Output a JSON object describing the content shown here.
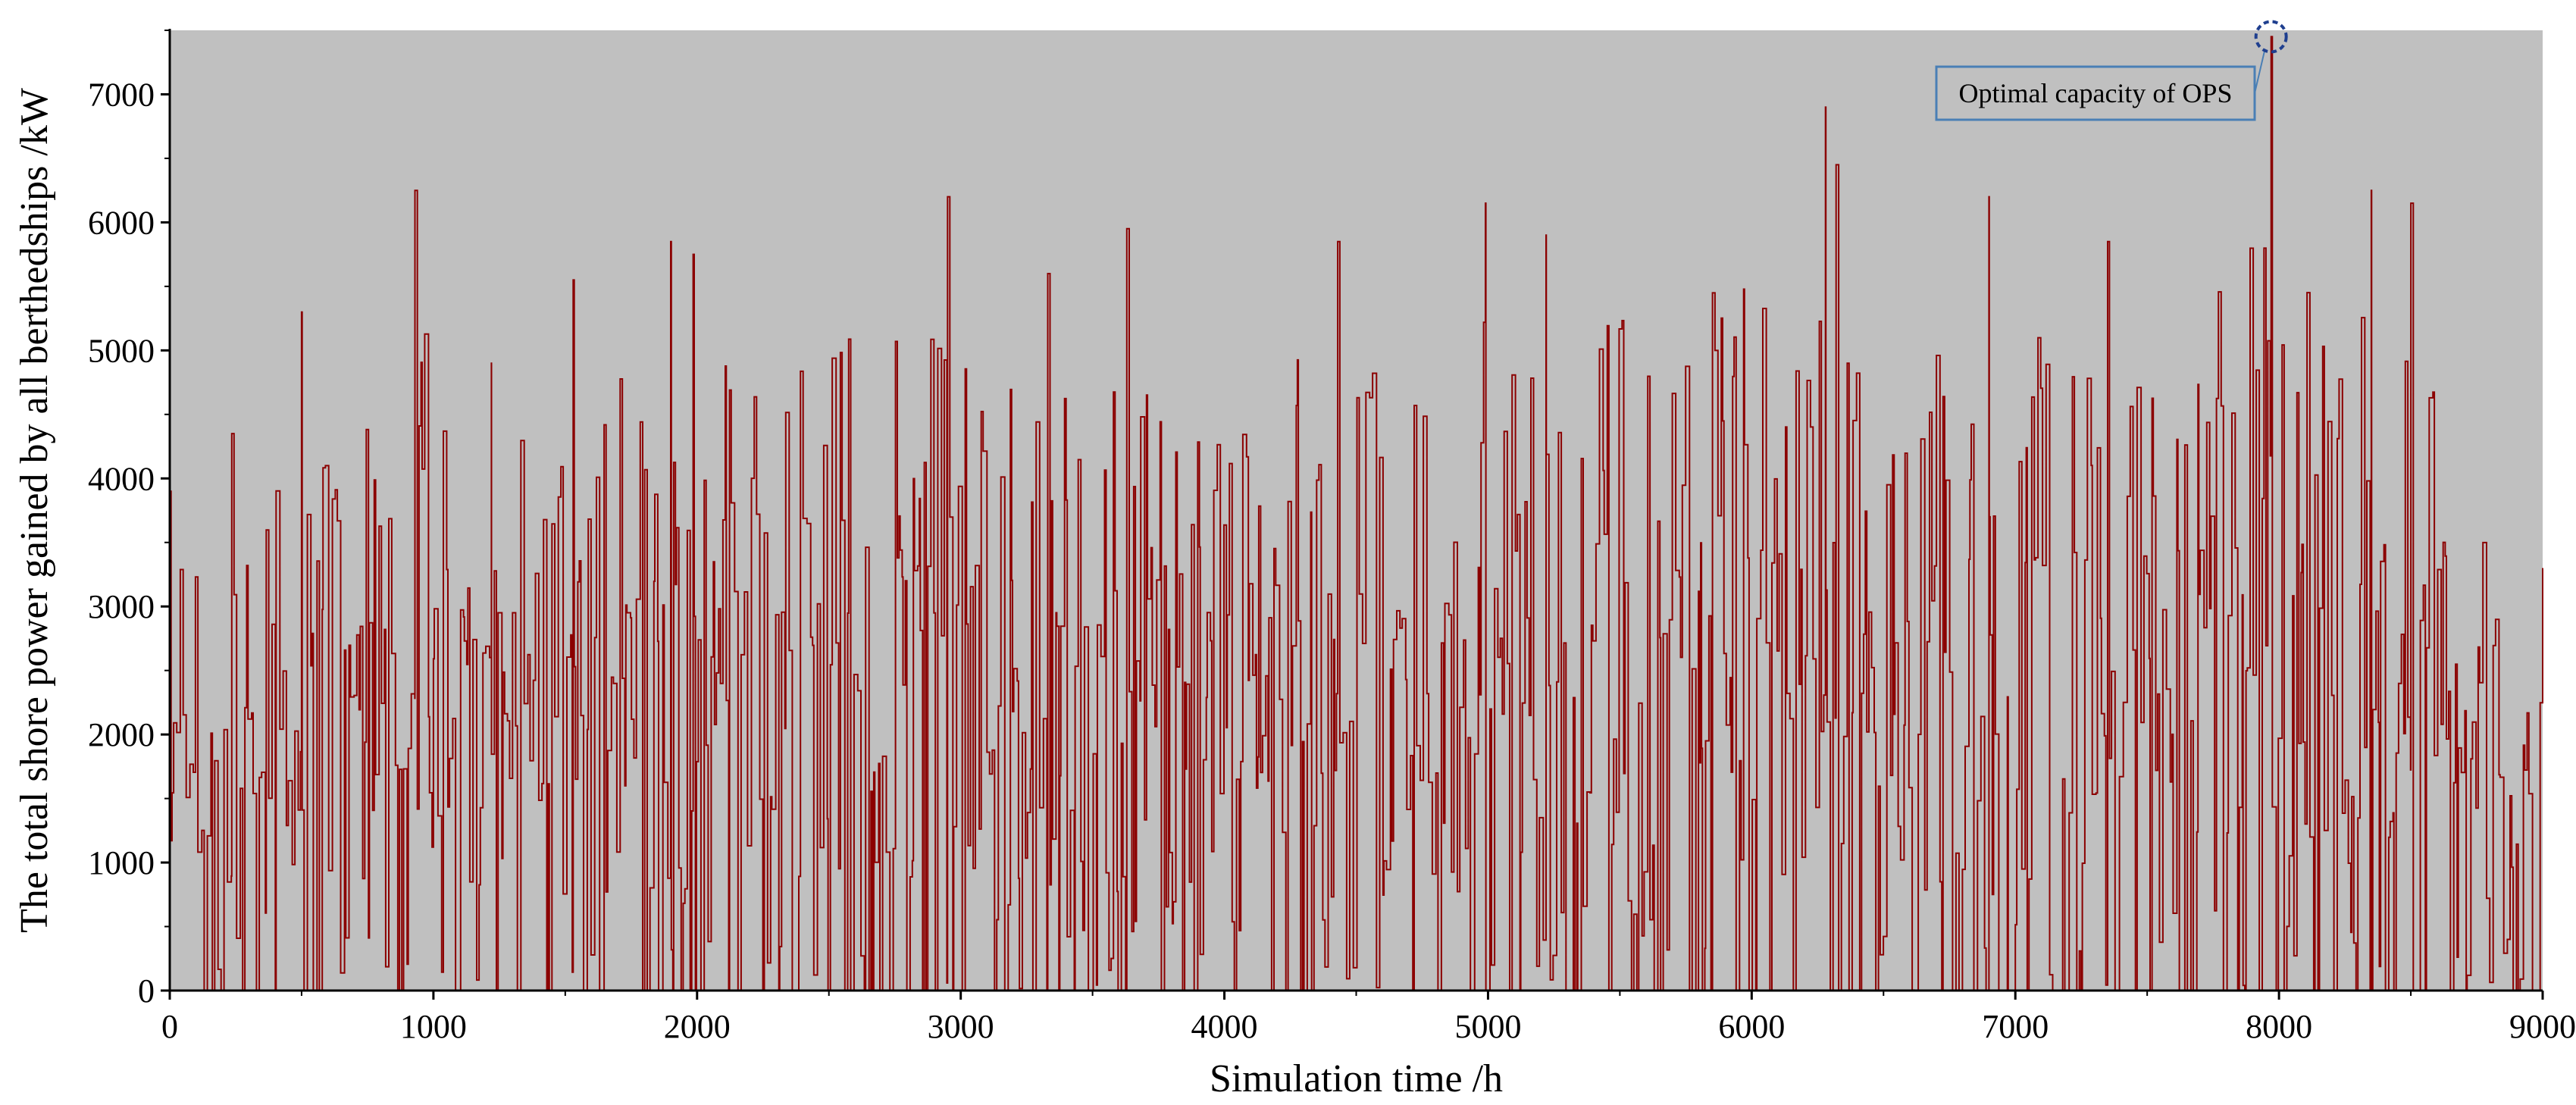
{
  "chart_data": {
    "type": "line",
    "title": "",
    "xlabel": "Simulation time /h",
    "ylabel": "The total shore power gained by all berthedships /kW",
    "xlim": [
      0,
      9000
    ],
    "ylim": [
      0,
      7500
    ],
    "x_ticks": [
      0,
      1000,
      2000,
      3000,
      4000,
      5000,
      6000,
      7000,
      8000,
      9000
    ],
    "x_tick_labels": [
      "0",
      "1000",
      "2000",
      "3000",
      "4000",
      "5000",
      "6000",
      "7000",
      "8000",
      "9000"
    ],
    "y_ticks": [
      0,
      1000,
      2000,
      3000,
      4000,
      5000,
      6000,
      7000
    ],
    "y_tick_labels": [
      "0",
      "1000",
      "2000",
      "3000",
      "4000",
      "5000",
      "6000",
      "7000"
    ],
    "grid": false,
    "legend": "none",
    "colors": {
      "series": "#8b0000",
      "plot_background": "#c0c0c0",
      "annotation_border": "#4a7fb5",
      "marker": "#1f3f8f"
    },
    "series": [
      {
        "name": "",
        "x": [
          0,
          235,
          500,
          930,
          1220,
          1530,
          1900,
          1985,
          2950,
          3330,
          3630,
          4430,
          4990,
          5220,
          6280,
          6320,
          6900,
          7350,
          7970,
          8350,
          8500,
          9000
        ],
        "y": [
          3900,
          4350,
          5300,
          6250,
          4900,
          5550,
          5850,
          5750,
          6200,
          5600,
          5950,
          5850,
          6150,
          5900,
          6900,
          6450,
          6200,
          5850,
          7450,
          6250,
          6150,
          3300
        ]
      }
    ],
    "peak": {
      "x": 7970,
      "y": 7450
    },
    "annotations": [
      {
        "text": "Optimal capacity of OPS",
        "x": 7970,
        "y": 7450
      }
    ]
  }
}
